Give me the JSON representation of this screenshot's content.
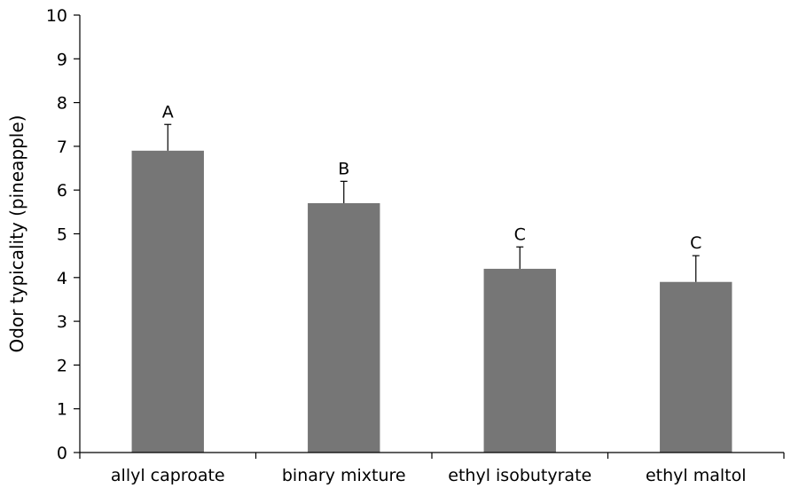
{
  "chart_data": {
    "type": "bar",
    "title": "",
    "xlabel": "",
    "ylabel": "Odor typicality (pineapple)",
    "ylim": [
      0,
      10
    ],
    "yticks": [
      0,
      1,
      2,
      3,
      4,
      5,
      6,
      7,
      8,
      9,
      10
    ],
    "grid": false,
    "legend": "none",
    "bar_color": "#767676",
    "categories": [
      "allyl caproate",
      "binary mixture",
      "ethyl isobutyrate",
      "ethyl maltol"
    ],
    "values": [
      6.9,
      5.7,
      4.2,
      3.9
    ],
    "error_upper": [
      0.6,
      0.5,
      0.5,
      0.6
    ],
    "significance_labels": [
      "A",
      "B",
      "C",
      "C"
    ]
  }
}
